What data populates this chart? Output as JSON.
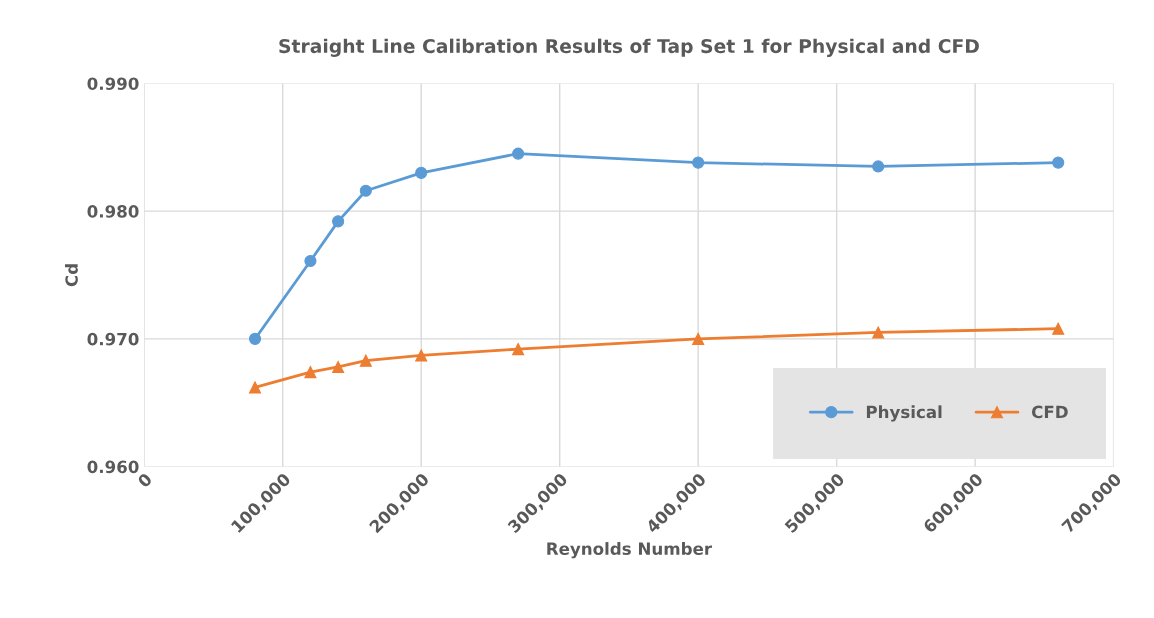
{
  "chart_data": {
    "type": "line",
    "title": "Straight Line Calibration Results of Tap Set 1 for Physical and CFD",
    "xlabel": "Reynolds Number",
    "ylabel": "Cd",
    "x": [
      80000,
      120000,
      140000,
      160000,
      200000,
      270000,
      400000,
      530000,
      660000
    ],
    "series": [
      {
        "name": "Physical",
        "color": "#5b9bd5",
        "marker": "circle",
        "values": [
          0.97,
          0.9761,
          0.9792,
          0.9816,
          0.983,
          0.9845,
          0.9838,
          0.9835,
          0.9838
        ]
      },
      {
        "name": "CFD",
        "color": "#ed7d31",
        "marker": "triangle",
        "values": [
          0.9662,
          0.9674,
          0.9678,
          0.9683,
          0.9687,
          0.9692,
          0.97,
          0.9705,
          0.9708
        ]
      }
    ],
    "xlim": [
      0,
      700000
    ],
    "xticks": [
      0,
      {
        "value": 100000,
        "label": "100,000"
      },
      {
        "value": 200000,
        "label": "200,000"
      },
      {
        "value": 300000,
        "label": "300,000"
      },
      {
        "value": 400000,
        "label": "400,000"
      },
      {
        "value": 500000,
        "label": "500,000"
      },
      {
        "value": 600000,
        "label": "600,000"
      },
      {
        "value": 700000,
        "label": "700,000"
      }
    ],
    "ylim": [
      0.96,
      0.99
    ],
    "yticks": [
      {
        "value": 0.96,
        "label": "0.960"
      },
      {
        "value": 0.97,
        "label": "0.970"
      },
      {
        "value": 0.98,
        "label": "0.980"
      },
      {
        "value": 0.99,
        "label": "0.990"
      }
    ],
    "grid": true,
    "legend": "lower right"
  }
}
